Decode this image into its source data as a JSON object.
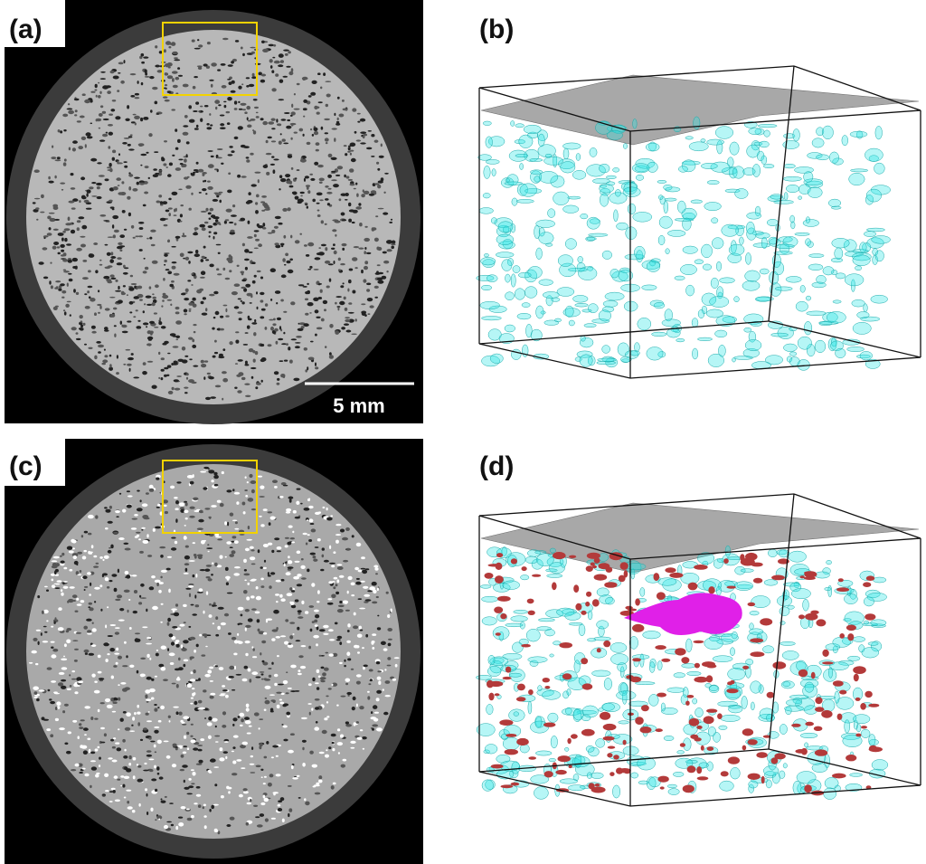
{
  "panels": [
    {
      "label": "(a)"
    },
    {
      "label": "(b)"
    },
    {
      "label": "(c)"
    },
    {
      "label": "(d)"
    }
  ],
  "scale_bar": {
    "label": "5 mm"
  }
}
